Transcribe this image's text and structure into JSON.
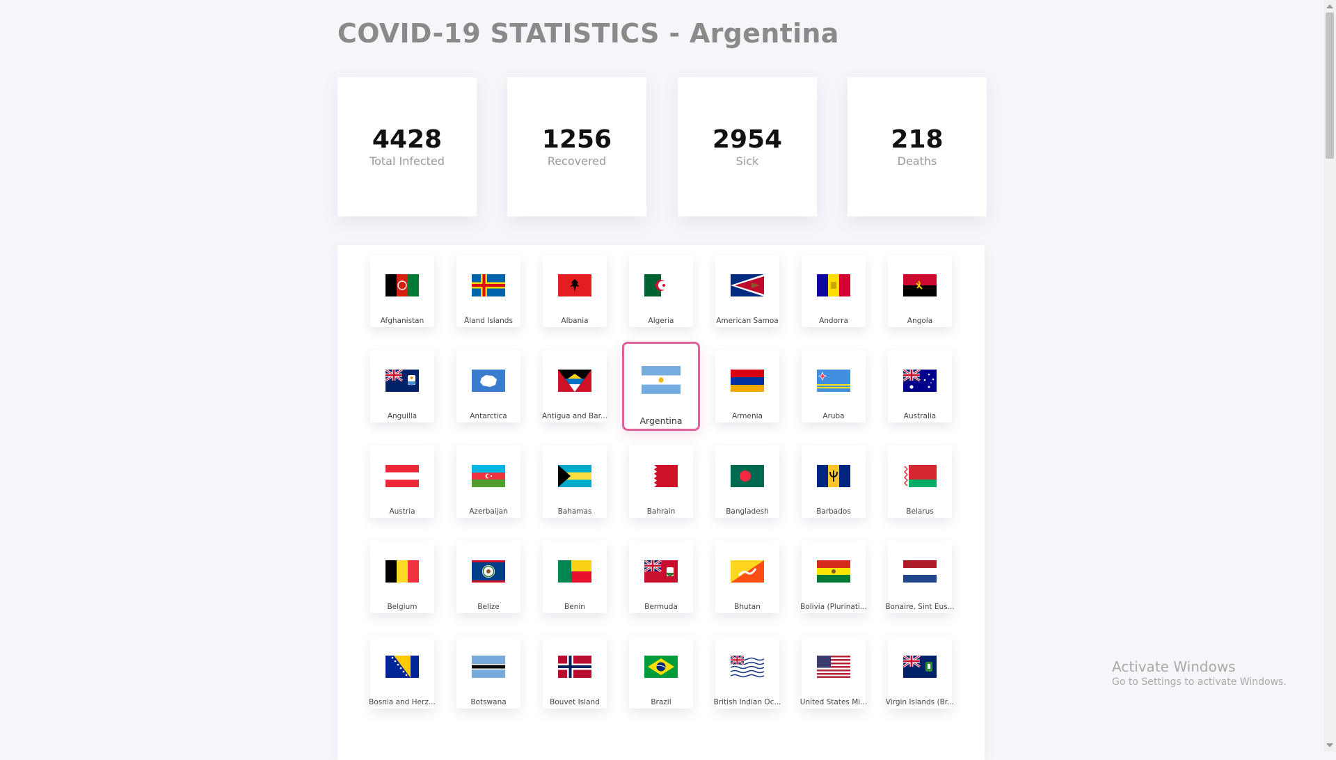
{
  "page": {
    "title": "COVID-19 STATISTICS - Argentina"
  },
  "stats": [
    {
      "value": "4428",
      "label": "Total Infected"
    },
    {
      "value": "1256",
      "label": "Recovered"
    },
    {
      "value": "2954",
      "label": "Sick"
    },
    {
      "value": "218",
      "label": "Deaths"
    }
  ],
  "selected_country": "Argentina",
  "countries": [
    {
      "name": "Afghanistan",
      "flag": "flag-afghanistan"
    },
    {
      "name": "Åland Islands",
      "flag": "flag-aland"
    },
    {
      "name": "Albania",
      "flag": "flag-albania"
    },
    {
      "name": "Algeria",
      "flag": "flag-algeria"
    },
    {
      "name": "American Samoa",
      "flag": "flag-american-samoa"
    },
    {
      "name": "Andorra",
      "flag": "flag-andorra"
    },
    {
      "name": "Angola",
      "flag": "flag-angola"
    },
    {
      "name": "Anguilla",
      "flag": "flag-anguilla"
    },
    {
      "name": "Antarctica",
      "flag": "flag-antarctica"
    },
    {
      "name": "Antigua and Bar...",
      "flag": "flag-antigua"
    },
    {
      "name": "Argentina",
      "flag": "flag-argentina"
    },
    {
      "name": "Armenia",
      "flag": "flag-armenia"
    },
    {
      "name": "Aruba",
      "flag": "flag-aruba"
    },
    {
      "name": "Australia",
      "flag": "flag-australia"
    },
    {
      "name": "Austria",
      "flag": "flag-austria"
    },
    {
      "name": "Azerbaijan",
      "flag": "flag-azerbaijan"
    },
    {
      "name": "Bahamas",
      "flag": "flag-bahamas"
    },
    {
      "name": "Bahrain",
      "flag": "flag-bahrain"
    },
    {
      "name": "Bangladesh",
      "flag": "flag-bangladesh"
    },
    {
      "name": "Barbados",
      "flag": "flag-barbados"
    },
    {
      "name": "Belarus",
      "flag": "flag-belarus"
    },
    {
      "name": "Belgium",
      "flag": "flag-belgium"
    },
    {
      "name": "Belize",
      "flag": "flag-belize"
    },
    {
      "name": "Benin",
      "flag": "flag-benin"
    },
    {
      "name": "Bermuda",
      "flag": "flag-bermuda"
    },
    {
      "name": "Bhutan",
      "flag": "flag-bhutan"
    },
    {
      "name": "Bolivia (Plurinati...",
      "flag": "flag-bolivia"
    },
    {
      "name": "Bonaire, Sint Eus...",
      "flag": "flag-bonaire"
    },
    {
      "name": "Bosnia and Herz...",
      "flag": "flag-bosnia"
    },
    {
      "name": "Botswana",
      "flag": "flag-botswana"
    },
    {
      "name": "Bouvet Island",
      "flag": "flag-bouvet"
    },
    {
      "name": "Brazil",
      "flag": "flag-brazil"
    },
    {
      "name": "British Indian Oc...",
      "flag": "flag-biot"
    },
    {
      "name": "United States Mi...",
      "flag": "flag-us-minor"
    },
    {
      "name": "Virgin Islands (Br...",
      "flag": "flag-bvi"
    }
  ],
  "watermark": {
    "title": "Activate Windows",
    "subtitle": "Go to Settings to activate Windows."
  }
}
